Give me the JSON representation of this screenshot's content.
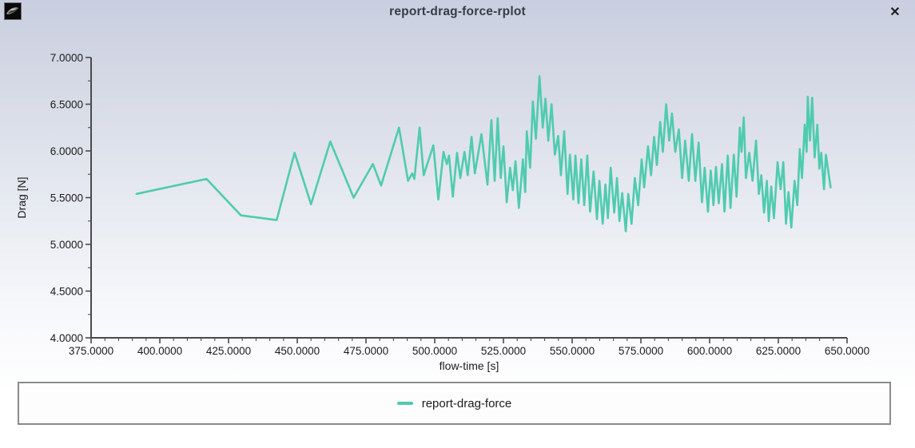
{
  "window": {
    "title": "report-drag-force-rplot",
    "close_glyph": "✕",
    "icon": "fluent-logo-icon"
  },
  "colors": {
    "series": "#4fcbb0",
    "axis": "#4a4a4a",
    "text": "#1b1b1b",
    "title_text": "#383d49",
    "legend_border": "#8b8b8b",
    "background_top": "#c9cfe0",
    "background_bottom": "#ffffff"
  },
  "chart_data": {
    "type": "line",
    "title": "",
    "xlabel": "flow-time [s]",
    "ylabel": "Drag [N]",
    "xlim": [
      375,
      650
    ],
    "ylim": [
      4.0,
      7.0
    ],
    "grid": false,
    "legend_position": "bottom",
    "x_major_tick_values": [
      375,
      400,
      425,
      450,
      475,
      500,
      525,
      550,
      575,
      600,
      625,
      650
    ],
    "x_tick_labels": [
      "375.0000",
      "400.0000",
      "425.0000",
      "450.0000",
      "475.0000",
      "500.0000",
      "525.0000",
      "550.0000",
      "575.0000",
      "600.0000",
      "625.0000",
      "650.0000"
    ],
    "x_minor_step": 5,
    "y_major_tick_values": [
      4.0,
      4.5,
      5.0,
      5.5,
      6.0,
      6.5,
      7.0
    ],
    "y_tick_labels": [
      "4.0000",
      "4.5000",
      "5.0000",
      "5.5000",
      "6.0000",
      "6.5000",
      "7.0000"
    ],
    "y_minor_step": 0.25,
    "series": [
      {
        "name": "report-drag-force",
        "color": "#4fcbb0",
        "points": [
          [
            391.5,
            5.54
          ],
          [
            417.0,
            5.7
          ],
          [
            429.5,
            5.31
          ],
          [
            442.5,
            5.26
          ],
          [
            449.0,
            5.98
          ],
          [
            455.0,
            5.43
          ],
          [
            462.0,
            6.1
          ],
          [
            470.5,
            5.5
          ],
          [
            477.5,
            5.86
          ],
          [
            480.5,
            5.63
          ],
          [
            487.0,
            6.25
          ],
          [
            490.3,
            5.68
          ],
          [
            491.8,
            5.76
          ],
          [
            492.6,
            5.7
          ],
          [
            494.5,
            6.25
          ],
          [
            496.0,
            5.74
          ],
          [
            499.5,
            6.06
          ],
          [
            501.3,
            5.48
          ],
          [
            503.2,
            5.99
          ],
          [
            504.4,
            5.86
          ],
          [
            505.2,
            5.95
          ],
          [
            506.6,
            5.51
          ],
          [
            508.1,
            5.98
          ],
          [
            509.3,
            5.71
          ],
          [
            510.8,
            5.99
          ],
          [
            512.0,
            5.74
          ],
          [
            513.4,
            6.15
          ],
          [
            514.6,
            5.76
          ],
          [
            517.0,
            6.18
          ],
          [
            519.2,
            5.64
          ],
          [
            520.6,
            6.33
          ],
          [
            521.8,
            5.68
          ],
          [
            522.9,
            6.35
          ],
          [
            524.0,
            5.71
          ],
          [
            525.0,
            6.05
          ],
          [
            526.2,
            5.45
          ],
          [
            527.4,
            5.82
          ],
          [
            528.4,
            5.58
          ],
          [
            529.4,
            5.89
          ],
          [
            530.6,
            5.39
          ],
          [
            532.1,
            5.91
          ],
          [
            532.9,
            5.56
          ],
          [
            533.5,
            6.21
          ],
          [
            534.7,
            5.82
          ],
          [
            535.7,
            6.53
          ],
          [
            536.8,
            6.13
          ],
          [
            538.1,
            6.8
          ],
          [
            539.3,
            6.25
          ],
          [
            540.3,
            6.56
          ],
          [
            541.3,
            6.11
          ],
          [
            542.5,
            6.5
          ],
          [
            543.7,
            5.96
          ],
          [
            544.9,
            6.16
          ],
          [
            545.9,
            5.74
          ],
          [
            547.1,
            6.21
          ],
          [
            548.3,
            5.54
          ],
          [
            549.2,
            5.96
          ],
          [
            550.4,
            5.48
          ],
          [
            551.2,
            5.95
          ],
          [
            552.3,
            5.44
          ],
          [
            553.3,
            5.91
          ],
          [
            554.4,
            5.42
          ],
          [
            555.5,
            5.95
          ],
          [
            556.5,
            5.35
          ],
          [
            557.8,
            5.78
          ],
          [
            559.0,
            5.27
          ],
          [
            559.9,
            5.68
          ],
          [
            561.1,
            5.22
          ],
          [
            562.1,
            5.64
          ],
          [
            563.0,
            5.28
          ],
          [
            564.0,
            5.82
          ],
          [
            565.3,
            5.34
          ],
          [
            566.3,
            5.71
          ],
          [
            567.2,
            5.25
          ],
          [
            568.2,
            5.55
          ],
          [
            569.5,
            5.14
          ],
          [
            570.4,
            5.54
          ],
          [
            571.6,
            5.22
          ],
          [
            572.8,
            5.71
          ],
          [
            574.0,
            5.42
          ],
          [
            575.3,
            5.91
          ],
          [
            576.2,
            5.61
          ],
          [
            577.6,
            6.05
          ],
          [
            578.7,
            5.74
          ],
          [
            579.8,
            6.15
          ],
          [
            580.8,
            5.85
          ],
          [
            582.0,
            6.31
          ],
          [
            583.0,
            5.99
          ],
          [
            584.2,
            6.5
          ],
          [
            585.3,
            6.11
          ],
          [
            586.3,
            6.4
          ],
          [
            587.5,
            5.99
          ],
          [
            588.8,
            6.23
          ],
          [
            590.0,
            5.71
          ],
          [
            591.1,
            6.11
          ],
          [
            592.4,
            5.68
          ],
          [
            593.6,
            6.18
          ],
          [
            594.8,
            5.68
          ],
          [
            596.0,
            6.09
          ],
          [
            597.2,
            5.45
          ],
          [
            598.2,
            5.82
          ],
          [
            599.4,
            5.35
          ],
          [
            600.4,
            5.79
          ],
          [
            601.4,
            5.42
          ],
          [
            602.3,
            5.83
          ],
          [
            603.3,
            5.44
          ],
          [
            604.5,
            5.86
          ],
          [
            605.4,
            5.35
          ],
          [
            606.6,
            5.95
          ],
          [
            607.6,
            5.39
          ],
          [
            608.8,
            5.96
          ],
          [
            609.8,
            5.51
          ],
          [
            611.0,
            6.25
          ],
          [
            611.6,
            5.99
          ],
          [
            612.4,
            6.36
          ],
          [
            613.2,
            5.71
          ],
          [
            614.4,
            5.98
          ],
          [
            615.6,
            5.68
          ],
          [
            616.9,
            6.11
          ],
          [
            617.9,
            5.54
          ],
          [
            618.8,
            5.74
          ],
          [
            619.8,
            5.34
          ],
          [
            620.8,
            5.68
          ],
          [
            621.5,
            5.25
          ],
          [
            622.4,
            5.62
          ],
          [
            623.4,
            5.28
          ],
          [
            624.7,
            5.88
          ],
          [
            625.8,
            5.59
          ],
          [
            626.8,
            5.88
          ],
          [
            627.8,
            5.22
          ],
          [
            628.7,
            5.56
          ],
          [
            629.7,
            5.18
          ],
          [
            630.9,
            5.68
          ],
          [
            631.9,
            5.42
          ],
          [
            632.8,
            6.02
          ],
          [
            633.6,
            5.71
          ],
          [
            634.6,
            6.28
          ],
          [
            635.3,
            5.99
          ],
          [
            635.7,
            6.58
          ],
          [
            636.5,
            6.11
          ],
          [
            637.3,
            6.57
          ],
          [
            638.2,
            5.93
          ],
          [
            639.2,
            6.28
          ],
          [
            639.9,
            5.81
          ],
          [
            640.6,
            5.98
          ],
          [
            641.6,
            5.59
          ],
          [
            642.3,
            5.96
          ],
          [
            644.0,
            5.61
          ]
        ]
      }
    ]
  }
}
